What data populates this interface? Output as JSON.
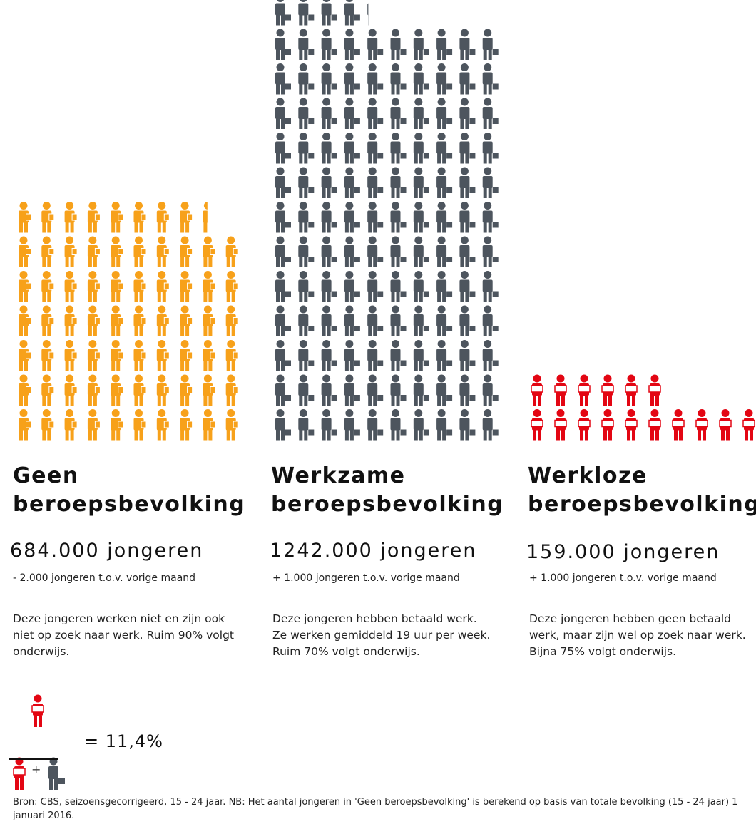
{
  "colors": {
    "geen": "#f7a11a",
    "werkzame": "#4d555e",
    "werkloze": "#e30613"
  },
  "chart_data": {
    "type": "pictogram",
    "categories": [
      "Geen beroepsbevolking",
      "Werkzame beroepsbevolking",
      "Werkloze beroepsbevolking"
    ],
    "series": [
      {
        "heading_line1": "Geen",
        "heading_line2": "beroepsbevolking",
        "value": 684000,
        "count_label": "684.000 jongeren",
        "change_label": "- 2.000 jongeren t.o.v. vorige maand",
        "description": "Deze jongeren werken niet en zijn ook niet op zoek naar werk. Ruim 90% volgt onderwijs.",
        "color": "#f7a11a",
        "icon": "person-with-book-icon"
      },
      {
        "heading_line1": "Werkzame",
        "heading_line2": "beroepsbevolking",
        "value": 1242000,
        "count_label": "1242.000 jongeren",
        "change_label": "+ 1.000 jongeren t.o.v. vorige maand",
        "description": "Deze jongeren hebben betaald werk. Ze werken gemiddeld 19 uur per week. Ruim 70% volgt onderwijs.",
        "color": "#4d555e",
        "icon": "person-with-briefcase-icon"
      },
      {
        "heading_line1": "Werkloze",
        "heading_line2": "beroepsbevolking",
        "value": 159000,
        "count_label": "159.000 jongeren",
        "change_label": "+ 1.000 jongeren t.o.v. vorige maand",
        "description": "Deze jongeren hebben geen betaald werk, maar zijn wel op zoek naar werk. Bijna 75% volgt onderwijs.",
        "color": "#e30613",
        "icon": "person-with-sign-icon"
      }
    ]
  },
  "formula": {
    "plus": "+",
    "result": "= 11,4%"
  },
  "source": "Bron: CBS, seizoensgecorrigeerd, 15 - 24 jaar. NB: Het aantal jongeren in 'Geen beroepsbevolking' is berekend op basis van totale bevolking (15 - 24 jaar) 1 januari 2016."
}
